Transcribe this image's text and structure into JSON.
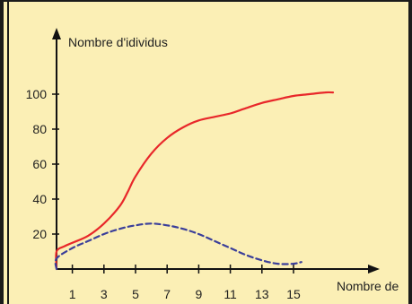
{
  "chart_data": {
    "type": "line",
    "title": "",
    "ylabel": "Nombre d'idividus",
    "xlabel": "Nombre de",
    "x_ticks": [
      "1",
      "3",
      "5",
      "7",
      "9",
      "11",
      "13",
      "15"
    ],
    "y_ticks": [
      "20",
      "40",
      "60",
      "80",
      "100"
    ],
    "xlim": [
      -1,
      20
    ],
    "ylim": [
      0,
      118
    ],
    "series": [
      {
        "color": "#e8272a",
        "style": "solid",
        "x": [
          -1,
          0,
          0.5,
          1,
          2,
          3,
          4,
          4.5,
          5,
          6,
          7,
          8,
          9,
          10,
          11,
          12,
          13,
          14,
          15,
          16,
          17,
          17.5
        ],
        "y": [
          0,
          10,
          13,
          15,
          19,
          26,
          36,
          44,
          53,
          66,
          75,
          81,
          85,
          87,
          89,
          92,
          95,
          97,
          99,
          100,
          101,
          101
        ]
      },
      {
        "color": "#3b3f9a",
        "style": "dashed",
        "x": [
          -1,
          0,
          1,
          2,
          3,
          4,
          5,
          6,
          7,
          8,
          9,
          10,
          11,
          12,
          13,
          14,
          15,
          15.5
        ],
        "y": [
          0,
          6,
          12,
          16,
          20,
          23,
          25,
          26,
          25,
          23,
          20,
          16,
          12,
          8,
          5,
          3,
          3,
          4
        ]
      }
    ],
    "axis_color": "#111111"
  }
}
